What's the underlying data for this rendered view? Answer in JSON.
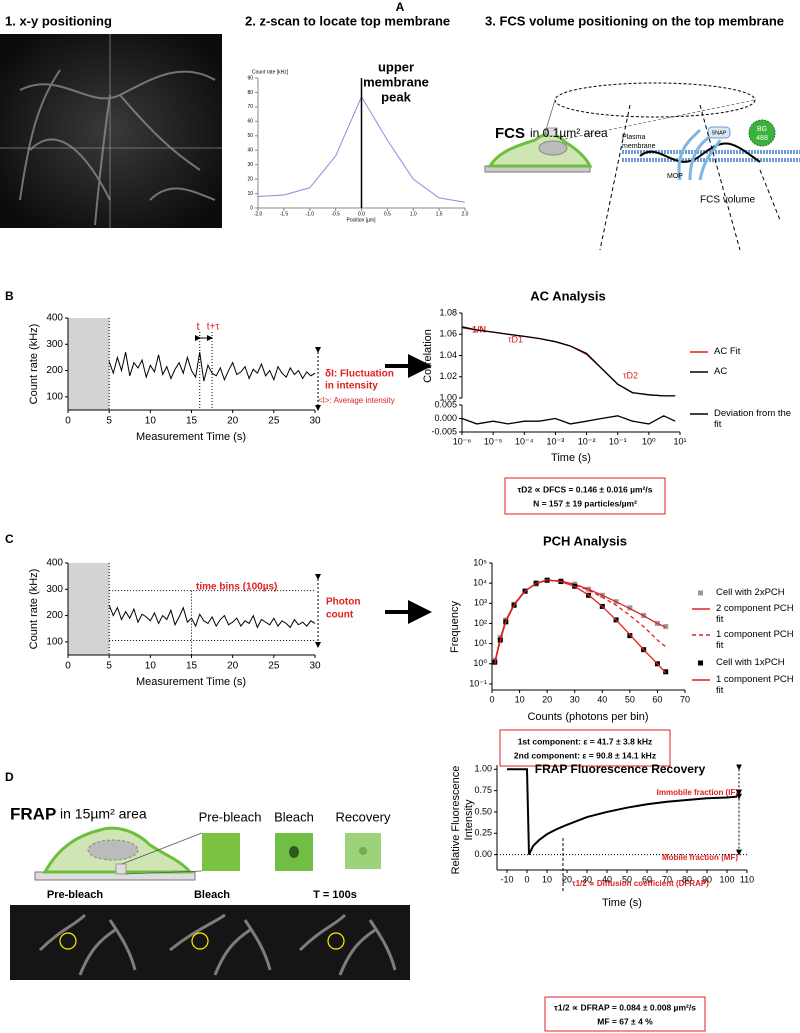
{
  "panel_a": {
    "label": "A",
    "xy": {
      "title": "1. x-y positioning"
    },
    "zscan": {
      "title": "2. z-scan to locate top membrane",
      "annotation": [
        "upper",
        "membrane",
        "peak"
      ],
      "chart": {
        "type": "line",
        "y_label": "Count rate [kHz]",
        "x_label": "Position [µm]",
        "x": [
          -2,
          -1.5,
          -1,
          -0.5,
          0,
          0.5,
          1,
          1.5,
          2
        ],
        "series": [
          {
            "color": "#8c8cdc",
            "values": [
              8,
              9,
              14,
              36,
              77,
              47,
              20,
              7,
              4
            ]
          }
        ],
        "xlim": [
          -2,
          2
        ],
        "ylim": [
          0,
          90
        ],
        "xticks": [
          {
            "value": -2,
            "label": "-2.0"
          },
          -1.5,
          {
            "value": -1,
            "label": "-1.0"
          },
          -0.5,
          {
            "value": 0,
            "label": "0.0"
          },
          0.5,
          {
            "value": 1,
            "label": "1.0"
          },
          1.5,
          {
            "value": 2,
            "label": "2.0"
          }
        ],
        "yticks": [
          0,
          10,
          20,
          30,
          40,
          50,
          60,
          70,
          80,
          90
        ],
        "peak_x": 0
      }
    },
    "fcs": {
      "title": "3. FCS volume positioning on the top membrane",
      "heading": "FCS",
      "heading_rest": "in 0.1µm² area",
      "membrane_label": [
        "Plasma",
        "membrane"
      ],
      "snap": "SNAP",
      "bg": [
        "BG",
        "488"
      ],
      "mop": "MOP",
      "volume": "FCS volume"
    }
  },
  "panel_b": {
    "label": "B",
    "trace": {
      "type": "line",
      "y_label": "Count rate (kHz)",
      "x_label": "Measurement Time (s)",
      "xlim": [
        0,
        30
      ],
      "ylim": [
        50,
        400
      ],
      "xticks": [
        0,
        5,
        10,
        15,
        20,
        25,
        30
      ],
      "yticks": [
        100,
        200,
        300,
        400
      ],
      "shade": [
        0,
        5
      ],
      "t_marks": [
        16,
        17.5
      ],
      "x": [
        5,
        5.5,
        6,
        6.5,
        7,
        7.5,
        8,
        8.5,
        9,
        9.5,
        10,
        10.5,
        11,
        11.5,
        12,
        12.5,
        13,
        13.5,
        14,
        14.5,
        15,
        15.5,
        16,
        16.5,
        17,
        17.5,
        18,
        18.5,
        19,
        19.5,
        20,
        20.5,
        21,
        21.5,
        22,
        22.5,
        23,
        23.5,
        24,
        24.5,
        25,
        25.5,
        26,
        26.5,
        27,
        27.5,
        28,
        28.5,
        29,
        29.5,
        30
      ],
      "series": [
        {
          "color": "#000000",
          "values": [
            235,
            190,
            250,
            200,
            270,
            180,
            230,
            210,
            240,
            175,
            220,
            195,
            260,
            185,
            215,
            170,
            205,
            230,
            190,
            250,
            200,
            175,
            270,
            160,
            220,
            190,
            180,
            210,
            165,
            200,
            230,
            185,
            195,
            215,
            170,
            205,
            190,
            225,
            180,
            200,
            165,
            215,
            190,
            175,
            210,
            185,
            200,
            170,
            195,
            180,
            190
          ]
        }
      ],
      "annotations": {
        "t": "t",
        "t_tau": "t+τ",
        "fluct": [
          "δI: Fluctuation",
          "in intensity"
        ],
        "avg": "<I>: Average intensity"
      }
    },
    "ac": {
      "type": "line",
      "title": "AC Analysis",
      "y_label": "Correlation",
      "x_label": "Time (s)",
      "xlog": true,
      "xlim": [
        1e-06,
        10
      ],
      "ylim": [
        1,
        1.08
      ],
      "y2lim": [
        -0.005,
        0.005
      ],
      "xticks": [
        {
          "value": 1e-06,
          "label": "10⁻⁶"
        },
        {
          "value": 1e-05,
          "label": "10⁻⁵"
        },
        {
          "value": 0.0001,
          "label": "10⁻⁴"
        },
        {
          "value": 0.001,
          "label": "10⁻³"
        },
        {
          "value": 0.01,
          "label": "10⁻²"
        },
        {
          "value": 0.1,
          "label": "10⁻¹"
        },
        {
          "value": 1,
          "label": "10⁰"
        },
        {
          "value": 10,
          "label": "10¹"
        }
      ],
      "yticks": [
        {
          "value": 1,
          "label": "1.00"
        },
        1.02,
        1.04,
        1.06,
        1.08
      ],
      "y2ticks": [
        -0.005,
        {
          "value": 0,
          "label": "0.000"
        },
        0.005
      ],
      "x": [
        1e-06,
        3e-06,
        1e-05,
        3e-05,
        0.0001,
        0.0003,
        0.001,
        0.003,
        0.01,
        0.03,
        0.1,
        0.3,
        1,
        3,
        7
      ],
      "series": [
        {
          "name": "AC Fit",
          "color": "#e02020",
          "values": [
            1.066,
            1.064,
            1.062,
            1.06,
            1.058,
            1.056,
            1.053,
            1.049,
            1.041,
            1.028,
            1.013,
            1.005,
            1.003,
            1.002,
            1.002
          ]
        },
        {
          "name": "AC",
          "color": "#000000",
          "values": [
            1.067,
            1.064,
            1.062,
            1.06,
            1.058,
            1.056,
            1.053,
            1.049,
            1.042,
            1.028,
            1.013,
            1.005,
            1.003,
            1.002,
            1.002
          ]
        },
        {
          "name": "Deviation from the fit",
          "color": "#000000",
          "axis": "y2",
          "values": [
            0,
            -0.002,
            -0.001,
            -0.002,
            -0.001,
            -0.001,
            0,
            -0.002,
            -0.001,
            0,
            0.001,
            -0.001,
            -0.002,
            0.001,
            -0.001
          ]
        }
      ],
      "annotations": {
        "inv_n": "1/N",
        "td1": "τD1",
        "td2": "τD2"
      },
      "result": [
        "τD2 ∝ DFCS = 0.146 ± 0.016 µm²/s",
        "N = 157 ± 19 particles/µm²"
      ]
    }
  },
  "panel_c": {
    "label": "C",
    "trace": {
      "type": "line",
      "y_label": "Count rate (kHz)",
      "x_label": "Measurement Time (s)",
      "xlim": [
        0,
        30
      ],
      "ylim": [
        50,
        400
      ],
      "xticks": [
        0,
        5,
        10,
        15,
        20,
        25,
        30
      ],
      "yticks": [
        100,
        200,
        300,
        400
      ],
      "shade": [
        0,
        5
      ],
      "bin_mark": 15,
      "count_range": [
        105,
        295
      ],
      "x": [
        5,
        5.5,
        6,
        6.5,
        7,
        7.5,
        8,
        8.5,
        9,
        9.5,
        10,
        10.5,
        11,
        11.5,
        12,
        12.5,
        13,
        13.5,
        14,
        14.5,
        15,
        15.5,
        16,
        16.5,
        17,
        17.5,
        18,
        18.5,
        19,
        19.5,
        20,
        20.5,
        21,
        21.5,
        22,
        22.5,
        23,
        23.5,
        24,
        24.5,
        25,
        25.5,
        26,
        26.5,
        27,
        27.5,
        28,
        28.5,
        29,
        29.5,
        30
      ],
      "series": [
        {
          "color": "#000000",
          "values": [
            240,
            200,
            230,
            185,
            215,
            190,
            225,
            175,
            205,
            195,
            180,
            210,
            170,
            200,
            185,
            220,
            165,
            195,
            230,
            175,
            190,
            160,
            205,
            180,
            170,
            195,
            160,
            185,
            200,
            165,
            175,
            190,
            160,
            180,
            170,
            200,
            155,
            185,
            175,
            165,
            190,
            160,
            180,
            170,
            155,
            185,
            165,
            175,
            160,
            180,
            170
          ]
        }
      ],
      "annotations": {
        "bins": "time bins (100µs)",
        "photon": [
          "Photon",
          "count"
        ]
      }
    },
    "pch": {
      "type": "line",
      "title": "PCH Analysis",
      "y_label": "Frequency",
      "x_label": "Counts (photons per bin)",
      "ylog": true,
      "xlim": [
        0,
        70
      ],
      "ylim": [
        0.05,
        100000
      ],
      "xticks": [
        0,
        10,
        20,
        30,
        40,
        50,
        60,
        70
      ],
      "yticks": [
        {
          "value": 0.1,
          "label": "10⁻¹"
        },
        {
          "value": 1,
          "label": "10⁰"
        },
        {
          "value": 10,
          "label": "10¹"
        },
        {
          "value": 100,
          "label": "10²"
        },
        {
          "value": 1000,
          "label": "10³"
        },
        {
          "value": 10000,
          "label": "10⁴"
        },
        {
          "value": 100000,
          "label": "10⁵"
        }
      ],
      "x": [
        1,
        3,
        5,
        8,
        12,
        16,
        20,
        25,
        30,
        35,
        40,
        45,
        50,
        55,
        60,
        63
      ],
      "series": [
        {
          "name": "Cell with 2xPCH",
          "color": "#999999",
          "marker": "square",
          "line": false,
          "values": [
            1.5,
            20,
            150,
            900,
            4000,
            9000,
            14000,
            13000,
            9000,
            5000,
            2500,
            1200,
            600,
            250,
            100,
            70
          ]
        },
        {
          "name": "2 component PCH fit",
          "color": "#e02020",
          "values": [
            1.2,
            18,
            140,
            900,
            4200,
            9500,
            14000,
            12500,
            8800,
            5000,
            2500,
            1200,
            550,
            240,
            100,
            65
          ]
        },
        {
          "name": "1 component PCH fit",
          "color": "#e02020",
          "dash": true,
          "values": [
            1.2,
            18,
            140,
            900,
            4200,
            9500,
            14000,
            12500,
            8500,
            4500,
            2000,
            800,
            250,
            70,
            15,
            7
          ]
        },
        {
          "name": "Cell with 1xPCH",
          "color": "#000000",
          "marker": "square",
          "line": false,
          "values": [
            1.2,
            15,
            120,
            800,
            4000,
            10000,
            14000,
            12000,
            7000,
            2500,
            700,
            150,
            25,
            5,
            1,
            0.4
          ]
        },
        {
          "name": "1 component PCH fit",
          "color": "#e02020",
          "values": [
            1,
            14,
            120,
            800,
            4000,
            10000,
            14500,
            12000,
            6800,
            2600,
            700,
            150,
            28,
            5,
            1,
            0.35
          ]
        }
      ],
      "result": [
        "1st component: ε = 41.7 ± 3.8 kHz",
        "2nd component: ε = 90.8 ± 14.1 kHz"
      ]
    }
  },
  "panel_d": {
    "label": "D",
    "heading": "FRAP",
    "heading_rest": "in 15µm² area",
    "steps": [
      "Pre-bleach",
      "Bleach",
      "Recovery"
    ],
    "images": [
      "Pre-bleach",
      "Bleach",
      "T = 100s"
    ],
    "frap": {
      "type": "line",
      "title": "FRAP Fluorescence Recovery",
      "y_label": [
        "Relative Fluorescence",
        "Intensity"
      ],
      "x_label": "Time (s)",
      "xlim": [
        -15,
        110
      ],
      "ylim": [
        -0.18,
        1.05
      ],
      "xticks": [
        -10,
        0,
        10,
        20,
        30,
        40,
        50,
        60,
        70,
        80,
        90,
        100,
        110
      ],
      "yticks": [
        {
          "value": 0,
          "label": "0.00"
        },
        0.25,
        {
          "value": 0.5,
          "label": "0.50"
        },
        0.75,
        {
          "value": 1,
          "label": "1.00"
        }
      ],
      "half_time": 18,
      "x": [
        -10,
        0,
        1,
        3,
        6,
        10,
        15,
        20,
        30,
        40,
        50,
        60,
        70,
        80,
        90,
        100,
        105
      ],
      "series": [
        {
          "color": "#000000",
          "values": [
            1,
            1,
            0,
            0.1,
            0.17,
            0.24,
            0.3,
            0.35,
            0.44,
            0.5,
            0.55,
            0.59,
            0.62,
            0.64,
            0.66,
            0.67,
            0.68
          ]
        }
      ],
      "annotations": {
        "immobile": "Immobile fraction (IF)",
        "mobile": "Mobile fraction (MF)",
        "half": "τ1/2 ∝ Diffusion coefficient (DFRAP)"
      },
      "result": [
        "τ1/2 ∝ DFRAP = 0.084 ± 0.008 µm²/s",
        "MF = 67 ± 4 %"
      ]
    }
  }
}
